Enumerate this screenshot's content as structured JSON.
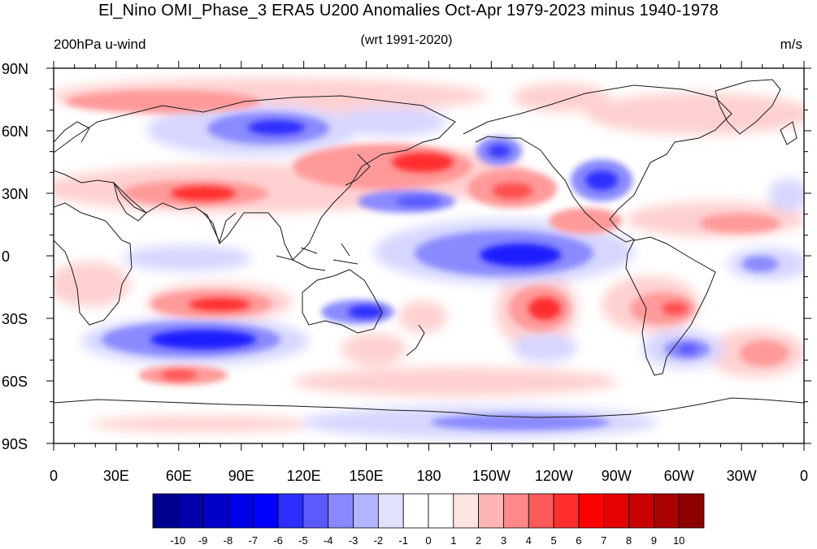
{
  "title": "El_Nino OMI_Phase_3 ERA5 U200 Anomalies Oct-Apr 1979-2023 minus 1940-1978",
  "subtitle_left": "200hPa u-wind",
  "subtitle_center": "(wrt 1991-2020)",
  "subtitle_right": "m/s",
  "y_axis": {
    "labels": [
      "90N",
      "60N",
      "30N",
      "0",
      "30S",
      "60S",
      "90S"
    ],
    "lat_values": [
      90,
      60,
      30,
      0,
      -30,
      -60,
      -90
    ]
  },
  "x_axis": {
    "labels": [
      "0",
      "30E",
      "60E",
      "90E",
      "120E",
      "150E",
      "180",
      "150W",
      "120W",
      "90W",
      "60W",
      "30W",
      "0"
    ],
    "lon_values": [
      0,
      30,
      60,
      90,
      120,
      150,
      180,
      210,
      240,
      270,
      300,
      330,
      360
    ]
  },
  "colorbar": {
    "labels": [
      "-10",
      "-9",
      "-8",
      "-7",
      "-6",
      "-5",
      "-4",
      "-3",
      "-2",
      "-1",
      "0",
      "1",
      "2",
      "3",
      "4",
      "5",
      "6",
      "7",
      "8",
      "9",
      "10"
    ],
    "colors": [
      "#00008c",
      "#0000ab",
      "#0000c9",
      "#0000e6",
      "#0000ff",
      "#2d2dff",
      "#5a5aff",
      "#8888ff",
      "#b5b5ff",
      "#e2e2ff",
      "#ffffff",
      "#ffffff",
      "#ffe2e2",
      "#ffb5b5",
      "#ff8888",
      "#ff5a5a",
      "#ff2d2d",
      "#ff0000",
      "#e60000",
      "#c90000",
      "#ab0000",
      "#8c0000"
    ]
  },
  "anomaly_features": [
    {
      "lon": 100,
      "lat": 55,
      "value": -5
    },
    {
      "lon": 160,
      "lat": 45,
      "value": 5
    },
    {
      "lon": 195,
      "lat": 37,
      "value": 5
    },
    {
      "lon": 75,
      "lat": 29,
      "value": 7
    },
    {
      "lon": 165,
      "lat": 25,
      "value": -4
    },
    {
      "lon": 213,
      "lat": 50,
      "value": -5
    },
    {
      "lon": 265,
      "lat": 35,
      "value": -6
    },
    {
      "lon": 225,
      "lat": 0,
      "value": -6
    },
    {
      "lon": 85,
      "lat": -24,
      "value": 5
    },
    {
      "lon": 155,
      "lat": -28,
      "value": -6
    },
    {
      "lon": 80,
      "lat": -40,
      "value": -7
    },
    {
      "lon": 240,
      "lat": -26,
      "value": 6
    },
    {
      "lon": 290,
      "lat": -27,
      "value": 5
    },
    {
      "lon": 290,
      "lat": -45,
      "value": -5
    },
    {
      "lon": 65,
      "lat": -57,
      "value": 5
    },
    {
      "lon": 215,
      "lat": -80,
      "value": -4
    },
    {
      "lon": 110,
      "lat": 73,
      "value": 3
    }
  ]
}
